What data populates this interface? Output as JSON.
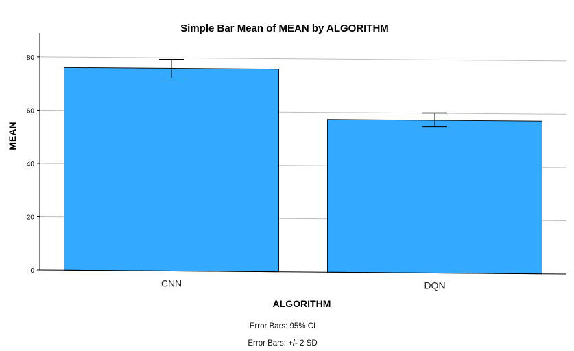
{
  "chart_data": {
    "type": "bar",
    "title": "Simple Bar Mean of MEAN by ALGORITHM",
    "xlabel": "ALGORITHM",
    "ylabel": "MEAN",
    "categories": [
      "CNN",
      "DQN"
    ],
    "values": [
      76.1,
      57.4
    ],
    "error_bars": [
      {
        "low": 72.5,
        "high": 79.4
      },
      {
        "low": 54.9,
        "high": 60.1
      }
    ],
    "yticks": [
      "0",
      "20",
      "40",
      "60",
      "80"
    ],
    "ylim": [
      0,
      89
    ],
    "grid": true,
    "bar_color": "#33aaff",
    "footnotes": [
      "Error Bars: 95% CI",
      "Error Bars: +/- 2 SD"
    ]
  }
}
